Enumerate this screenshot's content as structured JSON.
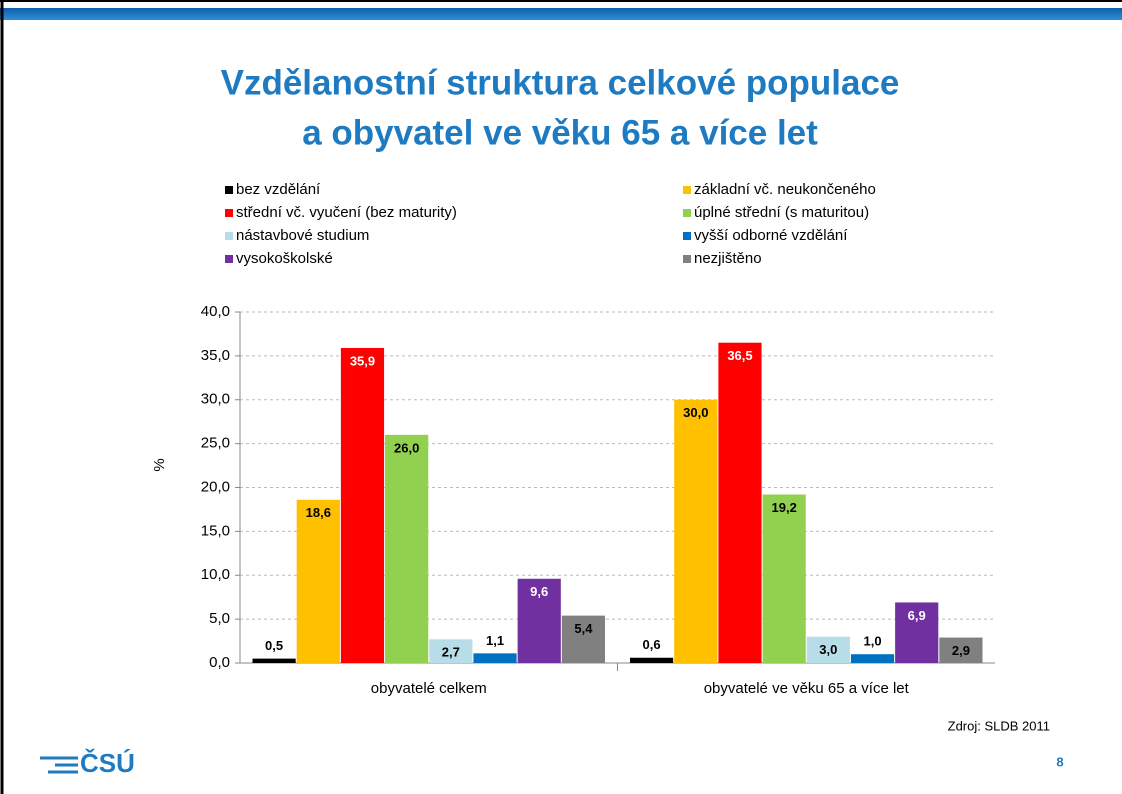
{
  "chart_data": {
    "type": "bar",
    "title": [
      "Vzdělanostní struktura celkové populace",
      "a obyvatel ve věku 65 a více let"
    ],
    "y_label": "%",
    "categories": [
      "obyvatelé celkem",
      "obyvatelé ve věku 65 a více let"
    ],
    "series": [
      {
        "name": "bez vzdělání",
        "color": "#000000",
        "values": [
          0.5,
          0.6
        ],
        "value_labels": [
          "0,5",
          "0,6"
        ]
      },
      {
        "name": "základní vč. neukončeného",
        "color": "#ffc000",
        "values": [
          18.6,
          30.0
        ],
        "value_labels": [
          "18,6",
          "30,0"
        ]
      },
      {
        "name": "střední vč. vyučení (bez maturity)",
        "color": "#ff0000",
        "values": [
          35.9,
          36.5
        ],
        "value_labels": [
          "35,9",
          "36,5"
        ]
      },
      {
        "name": "úplné střední (s maturitou)",
        "color": "#92d050",
        "values": [
          26.0,
          19.2
        ],
        "value_labels": [
          "26,0",
          "19,2"
        ]
      },
      {
        "name": "nástavbové studium",
        "color": "#b7dee8",
        "values": [
          2.7,
          3.0
        ],
        "value_labels": [
          "2,7",
          "3,0"
        ]
      },
      {
        "name": "vyšší odborné vzdělání",
        "color": "#0070c0",
        "values": [
          1.1,
          1.0
        ],
        "value_labels": [
          "1,1",
          "1,0"
        ]
      },
      {
        "name": "vysokoškolské",
        "color": "#7030a0",
        "values": [
          9.6,
          6.9
        ],
        "value_labels": [
          "9,6",
          "6,9"
        ]
      },
      {
        "name": "nezjištěno",
        "color": "#808080",
        "values": [
          5.4,
          2.9
        ],
        "value_labels": [
          "5,4",
          "2,9"
        ]
      }
    ],
    "ylim": [
      0,
      40
    ],
    "yticks": [
      {
        "value": 0,
        "label": "0,0"
      },
      {
        "value": 5,
        "label": "5,0"
      },
      {
        "value": 10,
        "label": "10,0"
      },
      {
        "value": 15,
        "label": "15,0"
      },
      {
        "value": 20,
        "label": "20,0"
      },
      {
        "value": 25,
        "label": "25,0"
      },
      {
        "value": 30,
        "label": "30,0"
      },
      {
        "value": 35,
        "label": "35,0"
      },
      {
        "value": 40,
        "label": "40,0"
      }
    ],
    "grid": true,
    "legend": "top"
  },
  "source": "Zdroj: SLDB 2011",
  "logo": "ČSÚ",
  "page_number": "8"
}
